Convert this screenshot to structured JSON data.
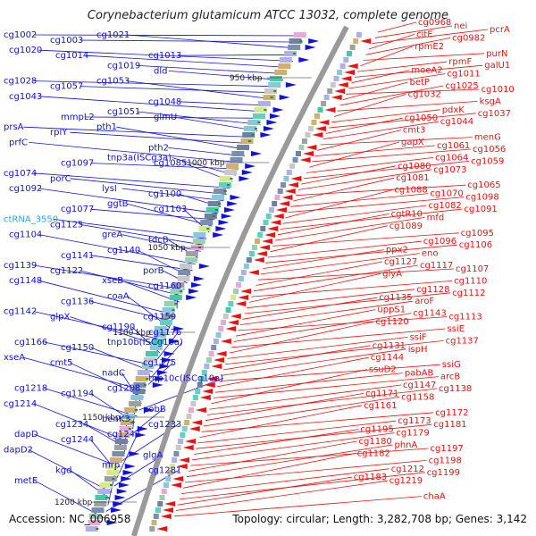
{
  "title": "Corynebacterium glutamicum ATCC 13032, complete genome",
  "accession": "Accession: NC_006958",
  "topology": "Topology: circular; Length: 3,282,708 bp; Genes: 3,142",
  "colors": {
    "left_genes": "#1010e0",
    "right_genes": "#ee1010",
    "rna_gene": "#2aa8e0",
    "tick": "#222222",
    "backbone": "#9a9a9a"
  },
  "scale_labels": [
    "950 kbp",
    "1000 kbp",
    "1050 kbp",
    "1100 kbp",
    "1150 kbp",
    "1200 kbp"
  ],
  "left_genes": [
    "cg1002",
    "cg1003",
    "cg1021",
    "cg1013",
    "cg1020",
    "cg1014",
    "cg1019",
    "dld",
    "cg1028",
    "cg1057",
    "cg1053",
    "cg1048",
    "cg1043",
    "mmpL2",
    "cg1051",
    "glmU",
    "prsA",
    "rplY",
    "pth1",
    "pth2",
    "prfC",
    "cg1097",
    "tnp3a(ISCg3a)",
    "cg1085",
    "cg1074",
    "porC",
    "lysI",
    "cg1100",
    "cg1092",
    "cg1077",
    "ggtB",
    "cg1103",
    "ctRNA_3550",
    "cg1125",
    "greA",
    "tdcB",
    "cg1104",
    "cg1141",
    "cg1140",
    "porB",
    "cg1139",
    "cg1122",
    "xseB",
    "cg1160",
    "cg1148",
    "cg1136",
    "coaA",
    "cg1159",
    "cg1142",
    "glpX",
    "cg1190",
    "cg1176",
    "cg1166",
    "cg1150",
    "tnp10b(ISCg10a)",
    "cg1175",
    "xseA",
    "cmt5",
    "nadC",
    "tnp10c(ISCg10a)",
    "cg1218",
    "cg1194",
    "cg1208",
    "pobB",
    "cg1214",
    "cg1234",
    "benK3",
    "cg1233",
    "dapD",
    "cg1244",
    "cg1247",
    "glgA",
    "dapD2",
    "kgd",
    "mrp",
    "cg1281",
    "metE"
  ],
  "right_genes": [
    "cg0968",
    "nei",
    "pcrA",
    "citE",
    "cg0982",
    "purN",
    "rpmE2",
    "rpmF",
    "galU1",
    "moeA2",
    "cg1011",
    "cg1010",
    "betP",
    "cg1025",
    "ksgA",
    "cg1032",
    "pdxK",
    "cg1037",
    "cg1050",
    "cg1044",
    "menG",
    "cmt3",
    "cg1061",
    "cg1056",
    "gapX",
    "cg1064",
    "cg1059",
    "cg1080",
    "cg1073",
    "cg1065",
    "cg1081",
    "cg1070",
    "cg1098",
    "cg1088",
    "cg1082",
    "cg1091",
    "cgtR10",
    "mfd",
    "cg1095",
    "cg1089",
    "cg1096",
    "cg1106",
    "ppx2",
    "eno",
    "cg1107",
    "cg1127",
    "cg1117",
    "cg1110",
    "glyA",
    "cg1128",
    "cg1112",
    "cg1135",
    "aroF",
    "cg1113",
    "uppS1",
    "cg1143",
    "ssiE",
    "cg1120",
    "ssiF",
    "cg1137",
    "cg1131",
    "ispH",
    "ssiG",
    "cg1144",
    "pabAB",
    "arcB",
    "ssuD2",
    "cg1147",
    "cg1138",
    "cg1171",
    "cg1158",
    "cg1172",
    "cg1161",
    "cg1173",
    "cg1181",
    "cg1195",
    "cg1179",
    "cg1197",
    "cg1180",
    "phnA",
    "cg1198",
    "cg1182",
    "cg1212",
    "cg1199",
    "cg1183",
    "cg1219",
    "chaA"
  ]
}
